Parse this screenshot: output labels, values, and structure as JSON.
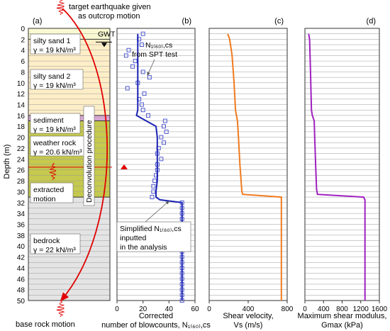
{
  "chart_data": {
    "type": "line",
    "shared_y": {
      "label": "Depth (m)",
      "ylim": [
        0,
        50
      ],
      "ticks": [
        0,
        2,
        4,
        6,
        8,
        10,
        12,
        14,
        16,
        18,
        20,
        22,
        24,
        26,
        28,
        30,
        32,
        34,
        36,
        38,
        40,
        42,
        44,
        46,
        48,
        50
      ]
    },
    "panels": [
      {
        "id": "a",
        "label": "(a)",
        "kind": "soil profile",
        "gwt_label": "GWT",
        "gwt_depth": 2,
        "layers": [
          {
            "top": 0,
            "bottom": 2,
            "name": "silty sand 1",
            "unit_weight": "γ = 19 kN/m³",
            "color": "#fafad2"
          },
          {
            "top": 2,
            "bottom": 16,
            "name": "silty sand 2",
            "unit_weight": "γ = 19 kN/m³",
            "color": "#fdeec7"
          },
          {
            "top": 16,
            "bottom": 17,
            "name": "",
            "unit_weight": "",
            "color": "#d8a6d2"
          },
          {
            "top": 17,
            "bottom": 31,
            "name": "weather rock",
            "unit_weight": "γ = 20.6 kN/m³",
            "color": "#c5c94e"
          },
          {
            "top": 31,
            "bottom": 50,
            "name": "bedrock",
            "unit_weight": "γ = 22 kN/m³",
            "color": "#e4e4e4"
          }
        ],
        "annotations": {
          "sediment": "sediment",
          "sediment_weight": "γ = 19 kN/m³",
          "target_line1": "target earthquake given",
          "target_line2": "as outcrop motion",
          "deconvolution": "Deconvolution procedure",
          "extracted_line1": "extracted",
          "extracted_line2": "motion",
          "base": "base rock motion"
        },
        "extraction_depth": 25.5
      },
      {
        "id": "b",
        "label": "(b)",
        "xlabel_line1": "Corrected",
        "xlabel_line2": "number of blowcounts, N₁₍₆₀₎,cs",
        "xlim": [
          0,
          60
        ],
        "xticks": [
          0,
          20,
          40,
          60
        ],
        "series": [
          {
            "name": "N₁₍₆₀₎,cs from SPT test",
            "style": "markers",
            "color": "#3f48cc",
            "points": [
              [
                20,
                1
              ],
              [
                17,
                2
              ],
              [
                19,
                3
              ],
              [
                9,
                4
              ],
              [
                7,
                5
              ],
              [
                14,
                6
              ],
              [
                12,
                7
              ],
              [
                20,
                8
              ],
              [
                25,
                9
              ],
              [
                16,
                10
              ],
              [
                8,
                11
              ],
              [
                21,
                12
              ],
              [
                17,
                13
              ],
              [
                19,
                14
              ],
              [
                20,
                15
              ],
              [
                24,
                16
              ],
              [
                37,
                17
              ],
              [
                36,
                18
              ],
              [
                38,
                19
              ],
              [
                34,
                20
              ],
              [
                36,
                21
              ],
              [
                32,
                22
              ],
              [
                31,
                23
              ],
              [
                34,
                24
              ],
              [
                31,
                25
              ],
              [
                31,
                26
              ],
              [
                30,
                27
              ],
              [
                29,
                28
              ],
              [
                28,
                29
              ],
              [
                28,
                30
              ],
              [
                27,
                31
              ],
              [
                50,
                32
              ],
              [
                50,
                33
              ],
              [
                50,
                34
              ],
              [
                50,
                35
              ],
              [
                50,
                36
              ],
              [
                50,
                37
              ],
              [
                50,
                38
              ],
              [
                50,
                39
              ],
              [
                50,
                40
              ],
              [
                50,
                41
              ],
              [
                50,
                42
              ],
              [
                50,
                43
              ],
              [
                50,
                44
              ],
              [
                50,
                45
              ],
              [
                50,
                46
              ],
              [
                50,
                47
              ],
              [
                50,
                48
              ],
              [
                50,
                49
              ],
              [
                50,
                50
              ]
            ]
          },
          {
            "name": "Simplified N₁₍₆₀₎,cs inputted in the analysis",
            "style": "line",
            "color": "#1a22b4",
            "points": [
              [
                16,
                1
              ],
              [
                16,
                15
              ],
              [
                15,
                16
              ],
              [
                30,
                18
              ],
              [
                31,
                20
              ],
              [
                31,
                28
              ],
              [
                30,
                30
              ],
              [
                30,
                31
              ],
              [
                33,
                31.5
              ],
              [
                50,
                32
              ],
              [
                50,
                50
              ]
            ]
          }
        ],
        "label_spt_line1": "N₁₍₆₀₎,cs",
        "label_spt_line2": "from SPT test",
        "label_simplified_line1": "Simplified N₁₍₆₀₎,cs",
        "label_simplified_line2": "inputted",
        "label_simplified_line3": "in the analysis"
      },
      {
        "id": "c",
        "label": "(c)",
        "xlabel_line1": "Shear velocity,",
        "xlabel_line2": "Vs (m/s)",
        "xlim": [
          0,
          800
        ],
        "xticks": [
          0,
          400,
          800
        ],
        "series": [
          {
            "name": "Vs",
            "style": "line",
            "color": "#f07a1e",
            "points": [
              [
                190,
                1
              ],
              [
                210,
                2
              ],
              [
                235,
                5
              ],
              [
                255,
                10
              ],
              [
                270,
                15
              ],
              [
                290,
                17
              ],
              [
                300,
                20
              ],
              [
                315,
                25
              ],
              [
                335,
                30
              ],
              [
                345,
                30.5
              ],
              [
                740,
                31
              ],
              [
                740,
                50
              ]
            ]
          }
        ]
      },
      {
        "id": "d",
        "label": "(d)",
        "xlabel_line1": "Maximum shear modulus,",
        "xlabel_line2": "Gmax (kPa)",
        "xlim": [
          0,
          1600
        ],
        "xticks": [
          0,
          400,
          800,
          1200,
          1600
        ],
        "series": [
          {
            "name": "Gmax",
            "style": "line",
            "color": "#a020c0",
            "points": [
              [
                80,
                1
              ],
              [
                100,
                2
              ],
              [
                120,
                8
              ],
              [
                140,
                15
              ],
              [
                160,
                16
              ],
              [
                200,
                17
              ],
              [
                210,
                20
              ],
              [
                230,
                25
              ],
              [
                250,
                29.5
              ],
              [
                270,
                30.5
              ],
              [
                1260,
                31
              ],
              [
                1290,
                31.5
              ],
              [
                1290,
                50
              ]
            ]
          }
        ]
      }
    ]
  }
}
